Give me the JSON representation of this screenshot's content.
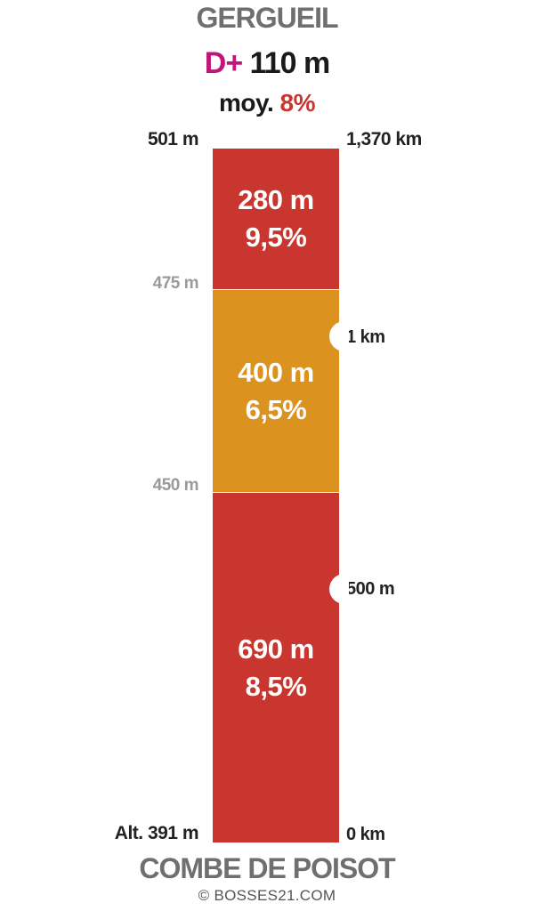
{
  "header": {
    "summit_name": "GERGUEIL",
    "gain_label": "D+",
    "gain_value": "110 m",
    "avg_label": "moy.",
    "avg_value": "8%"
  },
  "footer": {
    "base_name": "COMBE DE POISOT",
    "copyright": "© BOSSES21.COM"
  },
  "colors": {
    "gain_label": "#c2157b",
    "avg_value": "#c9352f",
    "steep": "#c9352f",
    "moderate": "#db921f"
  },
  "profile": {
    "total_length_m": 1370,
    "segments": [
      {
        "length_label": "690 m",
        "grade_label": "8,5%",
        "length_m": 690,
        "color": "#c9352f"
      },
      {
        "length_label": "400 m",
        "grade_label": "6,5%",
        "length_m": 400,
        "color": "#db921f"
      },
      {
        "length_label": "280 m",
        "grade_label": "9,5%",
        "length_m": 280,
        "color": "#c9352f"
      }
    ],
    "altitude_labels": {
      "top": "501 m",
      "mid_upper": "475 m",
      "mid_lower": "450 m",
      "bottom": "Alt. 391 m"
    },
    "distance_labels": {
      "top": "1,370 km",
      "km1": "1 km",
      "m500": "500 m",
      "start": "0 km"
    },
    "distance_markers_m": [
      500,
      1000
    ]
  }
}
